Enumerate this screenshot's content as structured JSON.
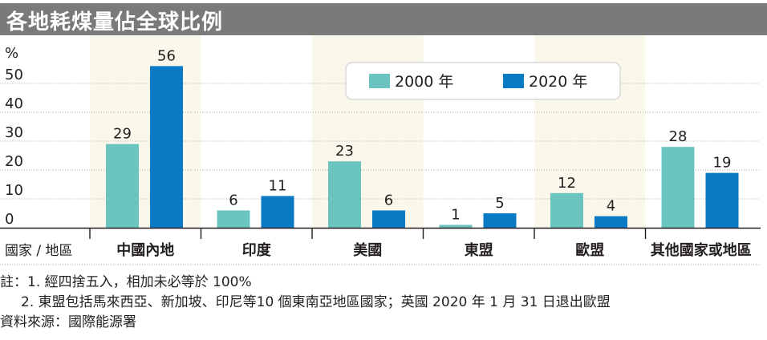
{
  "title": "各地耗煤量佔全球比例",
  "chart_data": {
    "type": "bar",
    "ylabel": "%",
    "ylim": [
      0,
      60
    ],
    "yticks": [
      0,
      10,
      20,
      30,
      40,
      50
    ],
    "xlabel": "國家 / 地區",
    "categories": [
      "中國內地",
      "印度",
      "美國",
      "東盟",
      "歐盟",
      "其他國家或地區"
    ],
    "series": [
      {
        "name": "2000 年",
        "color": "#6cc4c0",
        "values": [
          29,
          6,
          23,
          1,
          12,
          28
        ]
      },
      {
        "name": "2020 年",
        "color": "#0a7ac4",
        "values": [
          56,
          11,
          6,
          5,
          4,
          19
        ]
      }
    ],
    "legend_position": "top-right",
    "grid": true,
    "band_color": "#f9f8ea"
  },
  "notes": {
    "line1": "註：1. 經四捨五入，相加未必等於 100%",
    "line2": "2. 東盟包括馬來西亞、新加坡、印尼等10 個東南亞地區國家；英國 2020 年 1 月 31 日退出歐盟",
    "source": "資料來源：國際能源署"
  }
}
